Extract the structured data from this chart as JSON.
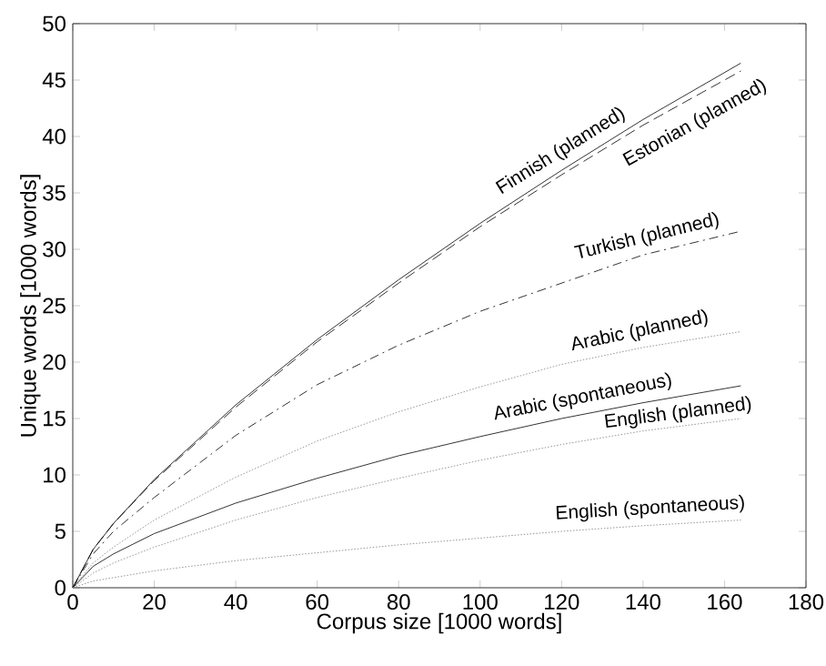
{
  "chart_data": {
    "type": "line",
    "xlabel": "Corpus size [1000 words]",
    "ylabel": "Unique words [1000 words]",
    "xlim": [
      0,
      180
    ],
    "ylim": [
      0,
      50
    ],
    "xticks": [
      0,
      20,
      40,
      60,
      80,
      100,
      120,
      140,
      160,
      180
    ],
    "yticks": [
      0,
      5,
      10,
      15,
      20,
      25,
      30,
      35,
      40,
      45,
      50
    ],
    "grid": false,
    "legend": false,
    "marker": "none",
    "x": [
      0,
      5,
      10,
      20,
      40,
      60,
      80,
      100,
      120,
      140,
      164
    ],
    "series": [
      {
        "name": "Finnish (planned)",
        "color": "#000000",
        "line_style": "solid",
        "values": [
          0,
          3.4,
          5.7,
          9.6,
          16.2,
          22.0,
          27.3,
          32.3,
          37.0,
          41.5,
          46.5
        ]
      },
      {
        "name": "Estonian (planned)",
        "color": "#000000",
        "line_style": "dashed",
        "values": [
          0,
          3.4,
          5.7,
          9.5,
          16.0,
          21.8,
          27.0,
          32.0,
          36.6,
          41.0,
          45.8
        ]
      },
      {
        "name": "Turkish (planned)",
        "color": "#000000",
        "line_style": "dashdot",
        "values": [
          0,
          3.0,
          5.0,
          8.0,
          13.5,
          18.0,
          21.5,
          24.5,
          27.0,
          29.5,
          31.6
        ]
      },
      {
        "name": "Arabic (planned)",
        "color": "#808080",
        "line_style": "dotted",
        "values": [
          0,
          2.2,
          3.6,
          6.0,
          9.8,
          13.0,
          15.6,
          17.8,
          19.8,
          21.3,
          22.7
        ]
      },
      {
        "name": "Arabic (spontaneous)",
        "color": "#000000",
        "line_style": "solid",
        "values": [
          0,
          1.9,
          3.0,
          4.8,
          7.5,
          9.7,
          11.7,
          13.4,
          15.0,
          16.4,
          17.9
        ]
      },
      {
        "name": "English (planned)",
        "color": "#808080",
        "line_style": "dotted",
        "values": [
          0,
          1.3,
          2.2,
          3.6,
          6.0,
          8.0,
          9.7,
          11.3,
          12.7,
          13.9,
          15.0
        ]
      },
      {
        "name": "English (spontaneous)",
        "color": "#808080",
        "line_style": "dotted",
        "values": [
          0,
          0.6,
          0.9,
          1.5,
          2.4,
          3.1,
          3.8,
          4.4,
          5.0,
          5.5,
          6.0
        ]
      }
    ]
  }
}
